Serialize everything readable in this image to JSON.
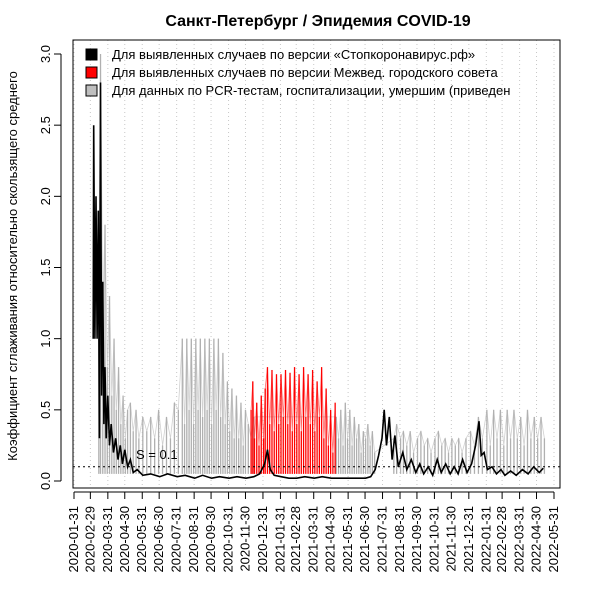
{
  "chart_data": {
    "type": "line",
    "title": "Санкт-Петербург / Эпидемия COVID-19",
    "ylabel": "Коэффициент сглаживания относительно скользящего среднего",
    "xlabel": "",
    "ylim": [
      0,
      3.0
    ],
    "yticks": [
      0.0,
      0.5,
      1.0,
      1.5,
      2.0,
      2.5,
      3.0
    ],
    "ytick_labels": [
      "0.0",
      "0.5",
      "1.0",
      "1.5",
      "2.0",
      "2.5",
      "3.0"
    ],
    "xlim": [
      "2020-01-31",
      "2022-05-31"
    ],
    "xticks": [
      "2020-01-31",
      "2020-02-29",
      "2020-03-31",
      "2020-04-30",
      "2020-05-31",
      "2020-06-30",
      "2020-07-31",
      "2020-08-31",
      "2020-09-30",
      "2020-10-31",
      "2020-11-30",
      "2020-12-31",
      "2021-01-31",
      "2021-02-28",
      "2021-03-31",
      "2021-04-30",
      "2021-05-31",
      "2021-06-30",
      "2021-07-31",
      "2021-08-31",
      "2021-09-30",
      "2021-10-31",
      "2021-11-30",
      "2021-12-31",
      "2022-01-31",
      "2022-02-28",
      "2022-03-31",
      "2022-04-30",
      "2022-05-31"
    ],
    "grid": "vertical dotted at month ticks",
    "legend_position": "top-left",
    "reference_line": {
      "y": 0.1,
      "label": "S = 0.1",
      "style": "dotted"
    },
    "series": [
      {
        "name": "Для выявленных случаев по версии «Стопкоронавирус.рф»",
        "color": "#000000",
        "style": "line",
        "points": [
          [
            "2020-03-05",
            1.0
          ],
          [
            "2020-03-06",
            2.5
          ],
          [
            "2020-03-08",
            1.0
          ],
          [
            "2020-03-10",
            2.0
          ],
          [
            "2020-03-12",
            1.0
          ],
          [
            "2020-03-14",
            1.9
          ],
          [
            "2020-03-16",
            0.3
          ],
          [
            "2020-03-18",
            2.8
          ],
          [
            "2020-03-20",
            0.6
          ],
          [
            "2020-03-22",
            1.4
          ],
          [
            "2020-03-24",
            0.4
          ],
          [
            "2020-03-26",
            0.8
          ],
          [
            "2020-03-28",
            0.3
          ],
          [
            "2020-03-31",
            0.6
          ],
          [
            "2020-04-03",
            0.25
          ],
          [
            "2020-04-06",
            0.4
          ],
          [
            "2020-04-10",
            0.2
          ],
          [
            "2020-04-14",
            0.3
          ],
          [
            "2020-04-18",
            0.15
          ],
          [
            "2020-04-22",
            0.25
          ],
          [
            "2020-04-26",
            0.12
          ],
          [
            "2020-04-30",
            0.22
          ],
          [
            "2020-05-05",
            0.1
          ],
          [
            "2020-05-10",
            0.15
          ],
          [
            "2020-05-15",
            0.06
          ],
          [
            "2020-05-22",
            0.08
          ],
          [
            "2020-06-01",
            0.04
          ],
          [
            "2020-06-15",
            0.05
          ],
          [
            "2020-07-01",
            0.03
          ],
          [
            "2020-07-15",
            0.05
          ],
          [
            "2020-08-01",
            0.03
          ],
          [
            "2020-08-15",
            0.04
          ],
          [
            "2020-09-01",
            0.02
          ],
          [
            "2020-09-15",
            0.04
          ],
          [
            "2020-10-01",
            0.02
          ],
          [
            "2020-10-15",
            0.03
          ],
          [
            "2020-11-01",
            0.02
          ],
          [
            "2020-11-15",
            0.03
          ],
          [
            "2020-12-01",
            0.02
          ],
          [
            "2020-12-15",
            0.03
          ],
          [
            "2020-12-25",
            0.05
          ],
          [
            "2021-01-03",
            0.12
          ],
          [
            "2021-01-08",
            0.22
          ],
          [
            "2021-01-13",
            0.08
          ],
          [
            "2021-01-20",
            0.04
          ],
          [
            "2021-02-01",
            0.03
          ],
          [
            "2021-02-15",
            0.02
          ],
          [
            "2021-03-01",
            0.02
          ],
          [
            "2021-03-15",
            0.03
          ],
          [
            "2021-04-01",
            0.02
          ],
          [
            "2021-04-15",
            0.03
          ],
          [
            "2021-05-01",
            0.02
          ],
          [
            "2021-05-15",
            0.02
          ],
          [
            "2021-06-01",
            0.02
          ],
          [
            "2021-06-15",
            0.02
          ],
          [
            "2021-07-01",
            0.02
          ],
          [
            "2021-07-10",
            0.03
          ],
          [
            "2021-07-18",
            0.08
          ],
          [
            "2021-07-24",
            0.18
          ],
          [
            "2021-07-30",
            0.3
          ],
          [
            "2021-08-03",
            0.5
          ],
          [
            "2021-08-07",
            0.25
          ],
          [
            "2021-08-12",
            0.45
          ],
          [
            "2021-08-17",
            0.15
          ],
          [
            "2021-08-22",
            0.32
          ],
          [
            "2021-08-28",
            0.1
          ],
          [
            "2021-09-05",
            0.2
          ],
          [
            "2021-09-12",
            0.08
          ],
          [
            "2021-09-20",
            0.15
          ],
          [
            "2021-09-28",
            0.06
          ],
          [
            "2021-10-05",
            0.12
          ],
          [
            "2021-10-12",
            0.05
          ],
          [
            "2021-10-20",
            0.1
          ],
          [
            "2021-10-28",
            0.04
          ],
          [
            "2021-11-05",
            0.15
          ],
          [
            "2021-11-12",
            0.06
          ],
          [
            "2021-11-20",
            0.12
          ],
          [
            "2021-11-28",
            0.05
          ],
          [
            "2021-12-05",
            0.1
          ],
          [
            "2021-12-12",
            0.05
          ],
          [
            "2021-12-20",
            0.15
          ],
          [
            "2021-12-28",
            0.06
          ],
          [
            "2022-01-05",
            0.12
          ],
          [
            "2022-01-12",
            0.25
          ],
          [
            "2022-01-18",
            0.42
          ],
          [
            "2022-01-22",
            0.18
          ],
          [
            "2022-01-27",
            0.2
          ],
          [
            "2022-02-02",
            0.08
          ],
          [
            "2022-02-10",
            0.1
          ],
          [
            "2022-02-18",
            0.05
          ],
          [
            "2022-02-26",
            0.08
          ],
          [
            "2022-03-05",
            0.04
          ],
          [
            "2022-03-15",
            0.07
          ],
          [
            "2022-03-25",
            0.04
          ],
          [
            "2022-04-05",
            0.08
          ],
          [
            "2022-04-15",
            0.05
          ],
          [
            "2022-04-25",
            0.1
          ],
          [
            "2022-05-05",
            0.06
          ],
          [
            "2022-05-12",
            0.09
          ]
        ]
      },
      {
        "name": "Для выявленных случаев по версии Межвед. городского совета",
        "color": "#ff0000",
        "style": "spikes",
        "points": [
          [
            "2020-12-10",
            0.5
          ],
          [
            "2020-12-13",
            0.7
          ],
          [
            "2020-12-16",
            0.3
          ],
          [
            "2020-12-20",
            0.55
          ],
          [
            "2020-12-24",
            0.25
          ],
          [
            "2020-12-28",
            0.6
          ],
          [
            "2021-01-01",
            0.3
          ],
          [
            "2021-01-04",
            0.65
          ],
          [
            "2021-01-08",
            0.8
          ],
          [
            "2021-01-12",
            0.4
          ],
          [
            "2021-01-16",
            0.78
          ],
          [
            "2021-01-20",
            0.35
          ],
          [
            "2021-01-24",
            0.75
          ],
          [
            "2021-01-28",
            0.4
          ],
          [
            "2021-02-01",
            0.75
          ],
          [
            "2021-02-05",
            0.45
          ],
          [
            "2021-02-09",
            0.78
          ],
          [
            "2021-02-13",
            0.4
          ],
          [
            "2021-02-17",
            0.76
          ],
          [
            "2021-02-21",
            0.35
          ],
          [
            "2021-02-25",
            0.8
          ],
          [
            "2021-03-01",
            0.4
          ],
          [
            "2021-03-05",
            0.75
          ],
          [
            "2021-03-09",
            0.35
          ],
          [
            "2021-03-13",
            0.8
          ],
          [
            "2021-03-17",
            0.45
          ],
          [
            "2021-03-21",
            0.75
          ],
          [
            "2021-03-25",
            0.4
          ],
          [
            "2021-03-29",
            0.78
          ],
          [
            "2021-04-02",
            0.35
          ],
          [
            "2021-04-06",
            0.7
          ],
          [
            "2021-04-10",
            0.45
          ],
          [
            "2021-04-14",
            0.8
          ],
          [
            "2021-04-18",
            0.3
          ],
          [
            "2021-04-22",
            0.65
          ],
          [
            "2021-04-26",
            0.25
          ],
          [
            "2021-04-30",
            0.5
          ],
          [
            "2021-05-04",
            0.2
          ],
          [
            "2021-05-08",
            0.55
          ]
        ]
      },
      {
        "name": "Для данных по PCR-тестам, госпитализации, умершим (приведен",
        "color": "#b0b0b0",
        "style": "spikes",
        "points": [
          [
            "2020-03-15",
            1.0
          ],
          [
            "2020-03-18",
            3.0
          ],
          [
            "2020-03-22",
            1.2
          ],
          [
            "2020-03-26",
            1.8
          ],
          [
            "2020-03-30",
            0.8
          ],
          [
            "2020-04-03",
            1.3
          ],
          [
            "2020-04-07",
            0.6
          ],
          [
            "2020-04-11",
            1.0
          ],
          [
            "2020-04-15",
            0.5
          ],
          [
            "2020-04-19",
            0.8
          ],
          [
            "2020-04-23",
            0.4
          ],
          [
            "2020-04-27",
            0.6
          ],
          [
            "2020-05-01",
            0.3
          ],
          [
            "2020-05-05",
            0.5
          ],
          [
            "2020-05-10",
            0.55
          ],
          [
            "2020-05-15",
            0.35
          ],
          [
            "2020-05-20",
            0.5
          ],
          [
            "2020-05-25",
            0.3
          ],
          [
            "2020-06-01",
            0.45
          ],
          [
            "2020-06-08",
            0.35
          ],
          [
            "2020-06-15",
            0.45
          ],
          [
            "2020-06-22",
            0.3
          ],
          [
            "2020-06-29",
            0.5
          ],
          [
            "2020-07-06",
            0.25
          ],
          [
            "2020-07-13",
            0.45
          ],
          [
            "2020-07-20",
            0.3
          ],
          [
            "2020-07-27",
            0.55
          ],
          [
            "2020-08-03",
            0.5
          ],
          [
            "2020-08-10",
            1.0
          ],
          [
            "2020-08-14",
            0.4
          ],
          [
            "2020-08-18",
            1.0
          ],
          [
            "2020-08-22",
            0.5
          ],
          [
            "2020-08-26",
            1.0
          ],
          [
            "2020-08-30",
            0.4
          ],
          [
            "2020-09-03",
            1.0
          ],
          [
            "2020-09-07",
            0.5
          ],
          [
            "2020-09-11",
            1.0
          ],
          [
            "2020-09-15",
            0.45
          ],
          [
            "2020-09-19",
            1.0
          ],
          [
            "2020-09-23",
            0.5
          ],
          [
            "2020-09-27",
            1.0
          ],
          [
            "2020-10-01",
            0.4
          ],
          [
            "2020-10-05",
            1.0
          ],
          [
            "2020-10-09",
            0.5
          ],
          [
            "2020-10-13",
            1.0
          ],
          [
            "2020-10-17",
            0.45
          ],
          [
            "2020-10-21",
            0.9
          ],
          [
            "2020-10-25",
            0.4
          ],
          [
            "2020-10-29",
            0.7
          ],
          [
            "2020-11-02",
            0.35
          ],
          [
            "2020-11-06",
            0.65
          ],
          [
            "2020-11-10",
            0.3
          ],
          [
            "2020-11-14",
            0.6
          ],
          [
            "2020-11-18",
            0.3
          ],
          [
            "2020-11-22",
            0.55
          ],
          [
            "2020-11-26",
            0.25
          ],
          [
            "2020-11-30",
            0.5
          ],
          [
            "2020-12-05",
            0.4
          ],
          [
            "2020-12-10",
            0.3
          ],
          [
            "2020-12-15",
            0.45
          ],
          [
            "2021-05-10",
            0.45
          ],
          [
            "2021-05-14",
            0.3
          ],
          [
            "2021-05-18",
            0.5
          ],
          [
            "2021-05-22",
            0.25
          ],
          [
            "2021-05-26",
            0.55
          ],
          [
            "2021-05-30",
            0.3
          ],
          [
            "2021-06-03",
            0.5
          ],
          [
            "2021-06-07",
            0.25
          ],
          [
            "2021-06-11",
            0.45
          ],
          [
            "2021-06-15",
            0.3
          ],
          [
            "2021-06-19",
            0.4
          ],
          [
            "2021-06-23",
            0.2
          ],
          [
            "2021-06-27",
            0.35
          ],
          [
            "2021-07-01",
            0.3
          ],
          [
            "2021-07-05",
            0.4
          ],
          [
            "2021-07-09",
            0.25
          ],
          [
            "2021-07-13",
            0.35
          ],
          [
            "2021-07-17",
            0.2
          ],
          [
            "2021-08-20",
            0.3
          ],
          [
            "2021-08-25",
            0.4
          ],
          [
            "2021-09-01",
            0.3
          ],
          [
            "2021-09-06",
            0.35
          ],
          [
            "2021-09-12",
            0.25
          ],
          [
            "2021-09-18",
            0.35
          ],
          [
            "2021-09-24",
            0.2
          ],
          [
            "2021-10-01",
            0.3
          ],
          [
            "2021-10-07",
            0.35
          ],
          [
            "2021-10-13",
            0.25
          ],
          [
            "2021-10-19",
            0.3
          ],
          [
            "2021-10-25",
            0.2
          ],
          [
            "2021-11-01",
            0.3
          ],
          [
            "2021-11-07",
            0.35
          ],
          [
            "2021-11-13",
            0.25
          ],
          [
            "2021-11-19",
            0.3
          ],
          [
            "2021-11-25",
            0.2
          ],
          [
            "2021-12-01",
            0.3
          ],
          [
            "2021-12-07",
            0.25
          ],
          [
            "2021-12-13",
            0.3
          ],
          [
            "2021-12-19",
            0.2
          ],
          [
            "2021-12-26",
            0.3
          ],
          [
            "2022-01-03",
            0.35
          ],
          [
            "2022-01-10",
            0.25
          ],
          [
            "2022-01-17",
            0.45
          ],
          [
            "2022-01-24",
            0.3
          ],
          [
            "2022-02-01",
            0.5
          ],
          [
            "2022-02-07",
            0.25
          ],
          [
            "2022-02-13",
            0.5
          ],
          [
            "2022-02-19",
            0.3
          ],
          [
            "2022-02-25",
            0.5
          ],
          [
            "2022-03-03",
            0.25
          ],
          [
            "2022-03-09",
            0.5
          ],
          [
            "2022-03-15",
            0.3
          ],
          [
            "2022-03-21",
            0.5
          ],
          [
            "2022-03-27",
            0.3
          ],
          [
            "2022-04-02",
            0.45
          ],
          [
            "2022-04-08",
            0.25
          ],
          [
            "2022-04-14",
            0.5
          ],
          [
            "2022-04-20",
            0.3
          ],
          [
            "2022-04-26",
            0.45
          ],
          [
            "2022-05-02",
            0.3
          ],
          [
            "2022-05-08",
            0.45
          ],
          [
            "2022-05-14",
            0.3
          ]
        ]
      }
    ]
  }
}
